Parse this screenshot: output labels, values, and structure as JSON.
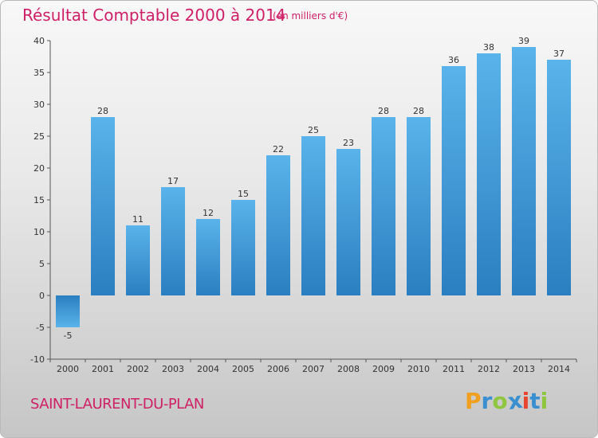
{
  "chart_data": {
    "type": "bar",
    "title": "Résultat Comptable 2000 à 2014",
    "subtitle": "(en milliers d'€)",
    "categories": [
      "2000",
      "2001",
      "2002",
      "2003",
      "2004",
      "2005",
      "2006",
      "2007",
      "2008",
      "2009",
      "2010",
      "2011",
      "2012",
      "2013",
      "2014"
    ],
    "values": [
      -5,
      28,
      11,
      17,
      12,
      15,
      22,
      25,
      23,
      28,
      28,
      36,
      38,
      39,
      37
    ],
    "ylim": [
      -10,
      40
    ],
    "yticks": [
      -10,
      -5,
      0,
      5,
      10,
      15,
      20,
      25,
      30,
      35,
      40
    ],
    "xlabel": "",
    "ylabel": "",
    "grid": false
  },
  "footer": {
    "commune": "SAINT-LAURENT-DU-PLAN",
    "logo_letters": [
      "P",
      "r",
      "o",
      "x",
      "i",
      "t",
      "i"
    ]
  },
  "colors": {
    "title": "#cf1f66",
    "bar_dark": "#2a7fc0",
    "bar_light": "#5ab3ea",
    "logo": [
      "#f0a01e",
      "#3a8fd0",
      "#8ec63f",
      "#3a8fd0",
      "#e8452f",
      "#3a8fd0",
      "#8ec63f"
    ]
  }
}
